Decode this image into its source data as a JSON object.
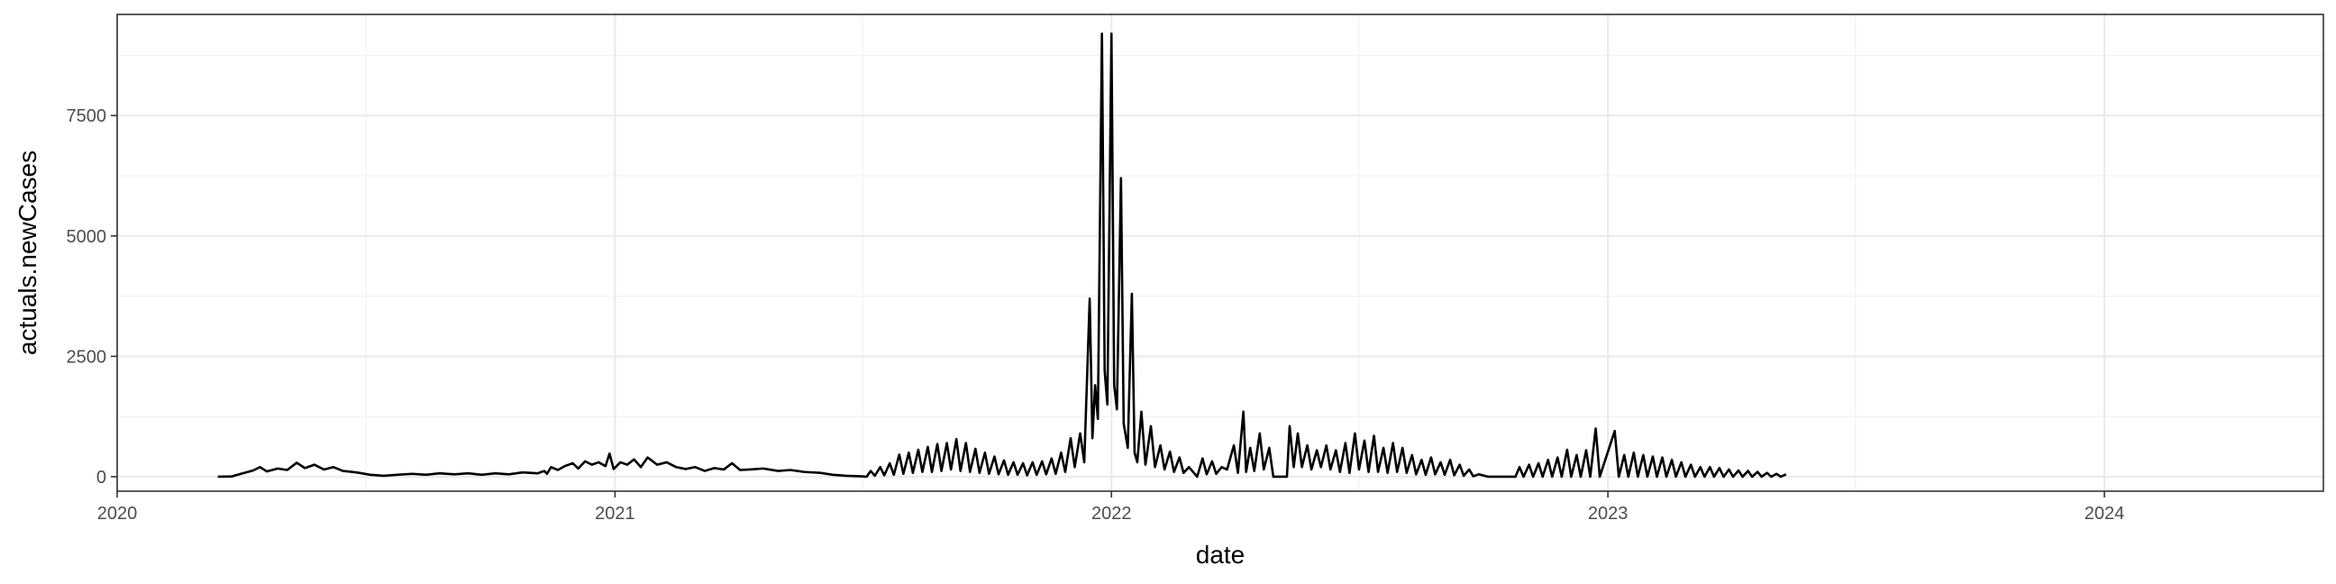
{
  "chart_data": {
    "type": "line",
    "xlabel": "date",
    "ylabel": "actuals.newCases",
    "x_axis_type": "date",
    "xlim": [
      "2020-01-01",
      "2024-06-10"
    ],
    "ylim": [
      -300,
      9600
    ],
    "x_ticks": [
      {
        "date": "2020-01-01",
        "label": "2020"
      },
      {
        "date": "2021-01-01",
        "label": "2021"
      },
      {
        "date": "2022-01-01",
        "label": "2022"
      },
      {
        "date": "2023-01-01",
        "label": "2023"
      },
      {
        "date": "2024-01-01",
        "label": "2024"
      }
    ],
    "y_ticks": [
      {
        "value": 0,
        "label": "0"
      },
      {
        "value": 2500,
        "label": "2500"
      },
      {
        "value": 5000,
        "label": "5000"
      },
      {
        "value": 7500,
        "label": "7500"
      }
    ],
    "grid": true,
    "legend": "none",
    "line_color": "#000000",
    "series": [
      {
        "points": [
          [
            "2020-03-15",
            0
          ],
          [
            "2020-03-25",
            5
          ],
          [
            "2020-04-01",
            60
          ],
          [
            "2020-04-10",
            130
          ],
          [
            "2020-04-15",
            200
          ],
          [
            "2020-04-20",
            110
          ],
          [
            "2020-04-28",
            170
          ],
          [
            "2020-05-05",
            140
          ],
          [
            "2020-05-12",
            290
          ],
          [
            "2020-05-18",
            180
          ],
          [
            "2020-05-25",
            250
          ],
          [
            "2020-06-01",
            150
          ],
          [
            "2020-06-08",
            200
          ],
          [
            "2020-06-15",
            120
          ],
          [
            "2020-06-25",
            90
          ],
          [
            "2020-07-05",
            40
          ],
          [
            "2020-07-15",
            20
          ],
          [
            "2020-07-25",
            40
          ],
          [
            "2020-08-05",
            60
          ],
          [
            "2020-08-15",
            40
          ],
          [
            "2020-08-25",
            70
          ],
          [
            "2020-09-05",
            50
          ],
          [
            "2020-09-15",
            70
          ],
          [
            "2020-09-25",
            40
          ],
          [
            "2020-10-05",
            70
          ],
          [
            "2020-10-15",
            50
          ],
          [
            "2020-10-25",
            90
          ],
          [
            "2020-11-05",
            70
          ],
          [
            "2020-11-10",
            120
          ],
          [
            "2020-11-12",
            60
          ],
          [
            "2020-11-15",
            200
          ],
          [
            "2020-11-20",
            140
          ],
          [
            "2020-11-25",
            220
          ],
          [
            "2020-12-01",
            280
          ],
          [
            "2020-12-05",
            170
          ],
          [
            "2020-12-10",
            320
          ],
          [
            "2020-12-15",
            250
          ],
          [
            "2020-12-20",
            300
          ],
          [
            "2020-12-25",
            220
          ],
          [
            "2020-12-28",
            480
          ],
          [
            "2020-12-31",
            160
          ],
          [
            "2021-01-05",
            300
          ],
          [
            "2021-01-10",
            250
          ],
          [
            "2021-01-15",
            360
          ],
          [
            "2021-01-20",
            200
          ],
          [
            "2021-01-25",
            400
          ],
          [
            "2021-02-01",
            250
          ],
          [
            "2021-02-08",
            300
          ],
          [
            "2021-02-15",
            200
          ],
          [
            "2021-02-22",
            160
          ],
          [
            "2021-03-01",
            200
          ],
          [
            "2021-03-08",
            120
          ],
          [
            "2021-03-15",
            180
          ],
          [
            "2021-03-22",
            150
          ],
          [
            "2021-03-28",
            280
          ],
          [
            "2021-04-03",
            140
          ],
          [
            "2021-04-10",
            150
          ],
          [
            "2021-04-20",
            170
          ],
          [
            "2021-05-01",
            120
          ],
          [
            "2021-05-10",
            140
          ],
          [
            "2021-05-20",
            100
          ],
          [
            "2021-06-01",
            80
          ],
          [
            "2021-06-10",
            40
          ],
          [
            "2021-06-20",
            20
          ],
          [
            "2021-06-30",
            10
          ],
          [
            "2021-07-05",
            0
          ],
          [
            "2021-07-08",
            120
          ],
          [
            "2021-07-11",
            20
          ],
          [
            "2021-07-15",
            200
          ],
          [
            "2021-07-18",
            30
          ],
          [
            "2021-07-22",
            280
          ],
          [
            "2021-07-25",
            40
          ],
          [
            "2021-07-29",
            460
          ],
          [
            "2021-08-01",
            60
          ],
          [
            "2021-08-05",
            500
          ],
          [
            "2021-08-08",
            80
          ],
          [
            "2021-08-12",
            560
          ],
          [
            "2021-08-15",
            100
          ],
          [
            "2021-08-19",
            620
          ],
          [
            "2021-08-22",
            100
          ],
          [
            "2021-08-26",
            680
          ],
          [
            "2021-08-29",
            120
          ],
          [
            "2021-09-02",
            700
          ],
          [
            "2021-09-05",
            150
          ],
          [
            "2021-09-09",
            780
          ],
          [
            "2021-09-12",
            120
          ],
          [
            "2021-09-16",
            700
          ],
          [
            "2021-09-19",
            100
          ],
          [
            "2021-09-23",
            580
          ],
          [
            "2021-09-26",
            80
          ],
          [
            "2021-09-30",
            500
          ],
          [
            "2021-10-03",
            60
          ],
          [
            "2021-10-07",
            420
          ],
          [
            "2021-10-10",
            50
          ],
          [
            "2021-10-14",
            340
          ],
          [
            "2021-10-17",
            40
          ],
          [
            "2021-10-21",
            300
          ],
          [
            "2021-10-24",
            40
          ],
          [
            "2021-10-28",
            280
          ],
          [
            "2021-10-31",
            30
          ],
          [
            "2021-11-04",
            300
          ],
          [
            "2021-11-07",
            40
          ],
          [
            "2021-11-11",
            320
          ],
          [
            "2021-11-14",
            50
          ],
          [
            "2021-11-18",
            380
          ],
          [
            "2021-11-21",
            60
          ],
          [
            "2021-11-25",
            500
          ],
          [
            "2021-11-28",
            100
          ],
          [
            "2021-12-02",
            800
          ],
          [
            "2021-12-05",
            200
          ],
          [
            "2021-12-09",
            900
          ],
          [
            "2021-12-12",
            300
          ],
          [
            "2021-12-16",
            3700
          ],
          [
            "2021-12-18",
            800
          ],
          [
            "2021-12-20",
            1900
          ],
          [
            "2021-12-22",
            1200
          ],
          [
            "2021-12-25",
            9200
          ],
          [
            "2021-12-27",
            2200
          ],
          [
            "2021-12-29",
            1500
          ],
          [
            "2022-01-01",
            9200
          ],
          [
            "2022-01-03",
            1900
          ],
          [
            "2022-01-05",
            1400
          ],
          [
            "2022-01-08",
            6200
          ],
          [
            "2022-01-10",
            1100
          ],
          [
            "2022-01-13",
            600
          ],
          [
            "2022-01-16",
            3800
          ],
          [
            "2022-01-18",
            500
          ],
          [
            "2022-01-20",
            300
          ],
          [
            "2022-01-23",
            1350
          ],
          [
            "2022-01-26",
            250
          ],
          [
            "2022-01-30",
            1050
          ],
          [
            "2022-02-02",
            200
          ],
          [
            "2022-02-06",
            650
          ],
          [
            "2022-02-09",
            150
          ],
          [
            "2022-02-13",
            520
          ],
          [
            "2022-02-16",
            100
          ],
          [
            "2022-02-20",
            400
          ],
          [
            "2022-02-23",
            80
          ],
          [
            "2022-02-27",
            200
          ],
          [
            "2022-03-05",
            0
          ],
          [
            "2022-03-09",
            380
          ],
          [
            "2022-03-12",
            50
          ],
          [
            "2022-03-16",
            320
          ],
          [
            "2022-03-19",
            60
          ],
          [
            "2022-03-23",
            200
          ],
          [
            "2022-03-27",
            150
          ],
          [
            "2022-04-01",
            650
          ],
          [
            "2022-04-04",
            80
          ],
          [
            "2022-04-08",
            1350
          ],
          [
            "2022-04-10",
            100
          ],
          [
            "2022-04-13",
            600
          ],
          [
            "2022-04-16",
            120
          ],
          [
            "2022-04-20",
            900
          ],
          [
            "2022-04-23",
            150
          ],
          [
            "2022-04-27",
            600
          ],
          [
            "2022-04-30",
            0
          ],
          [
            "2022-05-10",
            0
          ],
          [
            "2022-05-12",
            1050
          ],
          [
            "2022-05-15",
            200
          ],
          [
            "2022-05-18",
            900
          ],
          [
            "2022-05-21",
            200
          ],
          [
            "2022-05-25",
            650
          ],
          [
            "2022-05-28",
            150
          ],
          [
            "2022-06-01",
            550
          ],
          [
            "2022-06-04",
            200
          ],
          [
            "2022-06-08",
            650
          ],
          [
            "2022-06-11",
            150
          ],
          [
            "2022-06-15",
            550
          ],
          [
            "2022-06-18",
            100
          ],
          [
            "2022-06-22",
            700
          ],
          [
            "2022-06-25",
            80
          ],
          [
            "2022-06-29",
            900
          ],
          [
            "2022-07-02",
            150
          ],
          [
            "2022-07-06",
            750
          ],
          [
            "2022-07-09",
            100
          ],
          [
            "2022-07-13",
            850
          ],
          [
            "2022-07-16",
            100
          ],
          [
            "2022-07-20",
            600
          ],
          [
            "2022-07-23",
            80
          ],
          [
            "2022-07-27",
            700
          ],
          [
            "2022-07-30",
            100
          ],
          [
            "2022-08-03",
            600
          ],
          [
            "2022-08-06",
            80
          ],
          [
            "2022-08-10",
            450
          ],
          [
            "2022-08-13",
            50
          ],
          [
            "2022-08-17",
            350
          ],
          [
            "2022-08-20",
            40
          ],
          [
            "2022-08-24",
            400
          ],
          [
            "2022-08-27",
            50
          ],
          [
            "2022-08-31",
            300
          ],
          [
            "2022-09-03",
            40
          ],
          [
            "2022-09-07",
            350
          ],
          [
            "2022-09-10",
            30
          ],
          [
            "2022-09-14",
            250
          ],
          [
            "2022-09-17",
            20
          ],
          [
            "2022-09-21",
            150
          ],
          [
            "2022-09-24",
            10
          ],
          [
            "2022-09-28",
            50
          ],
          [
            "2022-10-05",
            0
          ],
          [
            "2022-10-25",
            0
          ],
          [
            "2022-10-28",
            200
          ],
          [
            "2022-10-31",
            0
          ],
          [
            "2022-11-04",
            250
          ],
          [
            "2022-11-07",
            0
          ],
          [
            "2022-11-11",
            280
          ],
          [
            "2022-11-14",
            0
          ],
          [
            "2022-11-18",
            350
          ],
          [
            "2022-11-21",
            0
          ],
          [
            "2022-11-25",
            400
          ],
          [
            "2022-11-28",
            0
          ],
          [
            "2022-12-02",
            560
          ],
          [
            "2022-12-05",
            0
          ],
          [
            "2022-12-09",
            450
          ],
          [
            "2022-12-12",
            0
          ],
          [
            "2022-12-16",
            550
          ],
          [
            "2022-12-19",
            0
          ],
          [
            "2022-12-23",
            1000
          ],
          [
            "2022-12-26",
            0
          ],
          [
            "2023-01-06",
            950
          ],
          [
            "2023-01-09",
            0
          ],
          [
            "2023-01-13",
            450
          ],
          [
            "2023-01-16",
            0
          ],
          [
            "2023-01-20",
            500
          ],
          [
            "2023-01-23",
            0
          ],
          [
            "2023-01-27",
            450
          ],
          [
            "2023-01-30",
            0
          ],
          [
            "2023-02-03",
            420
          ],
          [
            "2023-02-06",
            0
          ],
          [
            "2023-02-10",
            400
          ],
          [
            "2023-02-13",
            0
          ],
          [
            "2023-02-17",
            350
          ],
          [
            "2023-02-20",
            0
          ],
          [
            "2023-02-24",
            300
          ],
          [
            "2023-02-27",
            0
          ],
          [
            "2023-03-03",
            250
          ],
          [
            "2023-03-06",
            0
          ],
          [
            "2023-03-10",
            200
          ],
          [
            "2023-03-13",
            0
          ],
          [
            "2023-03-17",
            200
          ],
          [
            "2023-03-20",
            0
          ],
          [
            "2023-03-24",
            180
          ],
          [
            "2023-03-27",
            0
          ],
          [
            "2023-03-31",
            150
          ],
          [
            "2023-04-03",
            0
          ],
          [
            "2023-04-07",
            130
          ],
          [
            "2023-04-10",
            0
          ],
          [
            "2023-04-14",
            120
          ],
          [
            "2023-04-17",
            0
          ],
          [
            "2023-04-21",
            100
          ],
          [
            "2023-04-24",
            0
          ],
          [
            "2023-04-28",
            80
          ],
          [
            "2023-05-01",
            0
          ],
          [
            "2023-05-05",
            60
          ],
          [
            "2023-05-08",
            0
          ],
          [
            "2023-05-12",
            50
          ]
        ]
      }
    ]
  }
}
